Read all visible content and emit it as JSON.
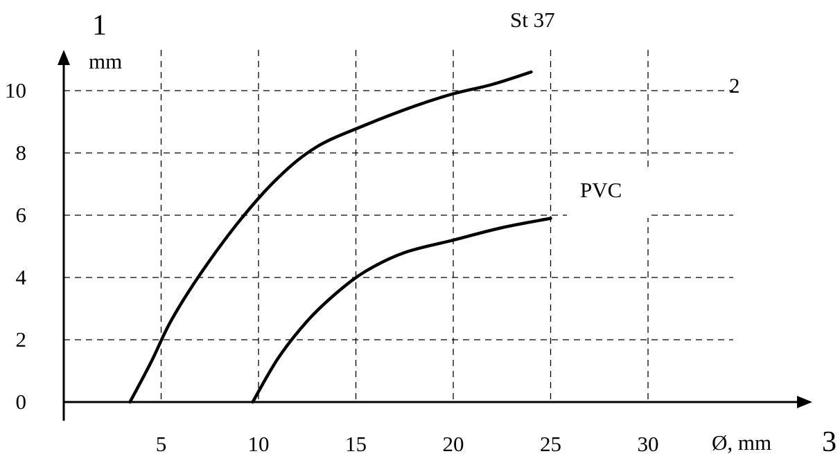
{
  "chart_data": {
    "type": "line",
    "xlabel": "Ø, mm",
    "ylabel": "mm",
    "x_ticks": [
      5,
      10,
      15,
      20,
      25,
      30
    ],
    "y_ticks": [
      0,
      2,
      4,
      6,
      8,
      10
    ],
    "xlim": [
      0,
      37
    ],
    "ylim": [
      0,
      11
    ],
    "grid": true,
    "series": [
      {
        "name": "St 37",
        "x": [
          3.4,
          4.5,
          5.5,
          7,
          9,
          11,
          13,
          15.5,
          18,
          20,
          22,
          24
        ],
        "y": [
          0,
          1.3,
          2.6,
          4.1,
          5.8,
          7.2,
          8.2,
          8.9,
          9.5,
          9.9,
          10.2,
          10.6
        ]
      },
      {
        "name": "PVC",
        "x": [
          9.7,
          11,
          12.5,
          14,
          15.5,
          17.5,
          20,
          22.5,
          25
        ],
        "y": [
          0,
          1.4,
          2.6,
          3.5,
          4.2,
          4.8,
          5.2,
          5.6,
          5.9
        ]
      }
    ],
    "annotations": [
      {
        "label": "1",
        "role": "y-axis-marker"
      },
      {
        "label": "2",
        "role": "upper-right-marker"
      },
      {
        "label": "3",
        "role": "x-axis-marker"
      }
    ]
  }
}
